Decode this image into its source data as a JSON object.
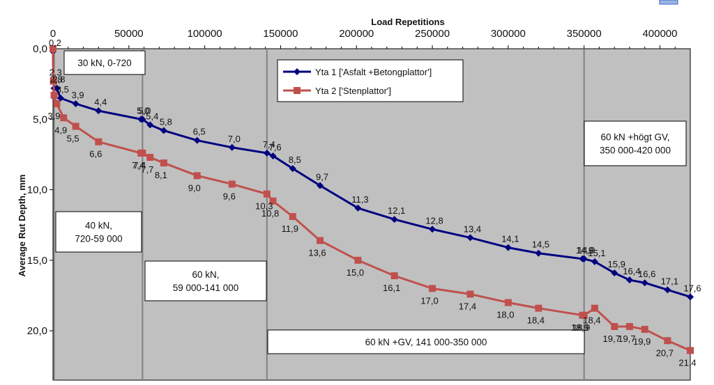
{
  "chart_data": {
    "type": "line",
    "xlabel": "Load Repetitions",
    "ylabel": "Average Rut Depth, mm",
    "xlim": [
      0,
      420000
    ],
    "ylim": [
      0,
      23.5
    ],
    "x_ticks": [
      0,
      50000,
      100000,
      150000,
      200000,
      250000,
      300000,
      350000,
      400000
    ],
    "y_ticks": [
      0,
      5,
      10,
      15,
      20
    ],
    "x_tick_labels": [
      "0",
      "50000",
      "100000",
      "150000",
      "200000",
      "250000",
      "300000",
      "350000",
      "400000"
    ],
    "y_tick_labels": [
      "0,0",
      "5,0",
      "10,0",
      "15,0",
      "20,0"
    ],
    "x_axis_position": "top",
    "y_axis_inverted": true,
    "grid": false,
    "plot_background": "#c0c0c0",
    "legend_position": "top-center",
    "phase_dividers": [
      720,
      59000,
      141000,
      350000
    ],
    "phase_labels": [
      {
        "lines": [
          "30 kN, 0-720"
        ]
      },
      {
        "lines": [
          "40 kN,",
          "720-59 000"
        ]
      },
      {
        "lines": [
          "60 kN,",
          "59 000-141 000"
        ]
      },
      {
        "lines": [
          "60 kN +GV, 141 000-350 000"
        ]
      },
      {
        "lines": [
          "60 kN +högt GV,",
          "350 000-420 000"
        ]
      }
    ],
    "series": [
      {
        "name": "Yta 1 ['Asfalt +Betongplattor']",
        "color": "#000080",
        "marker": "diamond",
        "x": [
          0,
          300,
          720,
          2500,
          5000,
          15000,
          30000,
          58000,
          59000,
          64000,
          73000,
          95000,
          118000,
          141000,
          145000,
          158000,
          176000,
          201000,
          225000,
          250000,
          275000,
          300000,
          320000,
          349000,
          350000,
          357000,
          370000,
          380000,
          390000,
          405000,
          420000
        ],
        "y": [
          0.2,
          2.3,
          2.8,
          2.8,
          3.5,
          3.9,
          4.4,
          5.0,
          5.0,
          5.4,
          5.8,
          6.5,
          7.0,
          7.4,
          7.6,
          8.5,
          9.7,
          11.3,
          12.1,
          12.8,
          13.4,
          14.1,
          14.5,
          14.9,
          14.9,
          15.1,
          15.9,
          16.4,
          16.6,
          17.1,
          17.6
        ],
        "labels": [
          "0,2",
          "2,3",
          "2,8",
          "2,8",
          "3,5",
          "3,9",
          "4,4",
          "5,0",
          "5,0",
          "5,4",
          "5,8",
          "6,5",
          "7,0",
          "7,4",
          "7,6",
          "8,5",
          "9,7",
          "11,3",
          "12,1",
          "12,8",
          "13,4",
          "14,1",
          "14,5",
          "14,9",
          "14,9",
          "15,1",
          "15,9",
          "16,4",
          "16,6",
          "17,1",
          "17,6"
        ]
      },
      {
        "name": "Yta 2 ['Stenplattor']",
        "color": "#c0504d",
        "marker": "square",
        "x": [
          0,
          300,
          720,
          2500,
          7000,
          15000,
          30000,
          58000,
          59000,
          64000,
          73000,
          95000,
          118000,
          141000,
          145000,
          158000,
          176000,
          201000,
          225000,
          250000,
          275000,
          300000,
          320000,
          349000,
          350000,
          357000,
          370000,
          380000,
          390000,
          405000,
          420000
        ],
        "y": [
          0.0,
          2.3,
          3.3,
          3.9,
          4.9,
          5.5,
          6.6,
          7.4,
          7.4,
          7.7,
          8.1,
          9.0,
          9.6,
          10.3,
          10.8,
          11.9,
          13.6,
          15.0,
          16.1,
          17.0,
          17.4,
          18.0,
          18.4,
          18.9,
          18.9,
          18.4,
          19.7,
          19.7,
          19.9,
          20.7,
          21.4
        ],
        "labels": [
          "",
          "",
          "",
          "3,9",
          "4,9",
          "5,5",
          "6,6",
          "7,4",
          "7,4",
          "7,7",
          "8,1",
          "9,0",
          "9,6",
          "10,3",
          "10,8",
          "11,9",
          "13,6",
          "15,0",
          "16,1",
          "17,0",
          "17,4",
          "18,0",
          "18,4",
          "18,9",
          "18,9",
          "18,4",
          "19,7",
          "19,7",
          "19,9",
          "20,7",
          "21,4"
        ]
      }
    ]
  }
}
